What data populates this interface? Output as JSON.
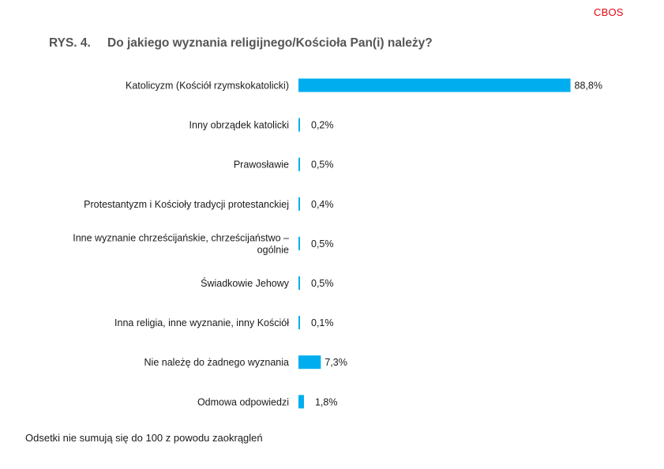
{
  "header": {
    "brand": "CBOS",
    "figure_number": "RYS. 4.",
    "title": "Do jakiego wyznania religijnego/Kościoła Pan(i) należy?"
  },
  "footer": {
    "note": "Odsetki nie sumują się do 100 z powodu zaokrągleń"
  },
  "colors": {
    "bar": "#00aeef",
    "brand": "#e30613"
  },
  "chart_data": {
    "type": "bar",
    "orientation": "horizontal",
    "title": "Do jakiego wyznania religijnego/Kościoła Pan(i) należy?",
    "categories": [
      "Katolicyzm (Kościół rzymskokatolicki)",
      "Inny obrządek katolicki",
      "Prawosławie",
      "Protestantyzm i Kościoły tradycji protestanckiej",
      "Inne wyznanie chrześcijańskie, chrześcijaństwo – ogólnie",
      "Świadkowie Jehowy",
      "Inna religia, inne wyznanie, inny Kościół",
      "Nie należę do żadnego wyznania",
      "Odmowa odpowiedzi"
    ],
    "category_lines": [
      [
        "Katolicyzm (Kościół rzymskokatolicki)"
      ],
      [
        "Inny obrządek katolicki"
      ],
      [
        "Prawosławie"
      ],
      [
        "Protestantyzm i Kościoły tradycji protestanckiej"
      ],
      [
        "Inne wyznanie chrześcijańskie, chrześcijaństwo –",
        "ogólnie"
      ],
      [
        "Świadkowie Jehowy"
      ],
      [
        "Inna religia, inne wyznanie, inny Kościół"
      ],
      [
        "Nie należę do żadnego wyznania"
      ],
      [
        "Odmowa odpowiedzi"
      ]
    ],
    "values": [
      88.8,
      0.2,
      0.5,
      0.4,
      0.5,
      0.5,
      0.1,
      7.3,
      1.8
    ],
    "value_labels": [
      "88,8%",
      "0,2%",
      "0,5%",
      "0,4%",
      "0,5%",
      "0,5%",
      "0,1%",
      "7,3%",
      "1,8%"
    ],
    "xlim": [
      0,
      100
    ],
    "grid": false,
    "legend": "none"
  }
}
